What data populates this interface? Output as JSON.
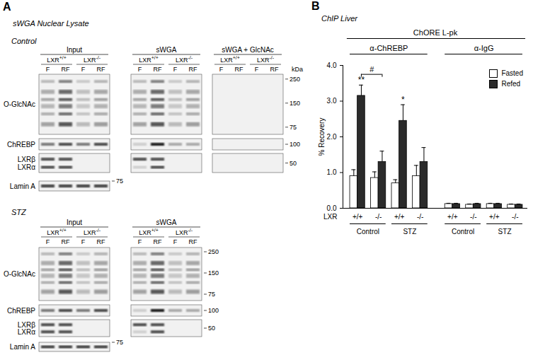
{
  "panel_a": {
    "label": "A",
    "title": "sWGA Nuclear Lysate",
    "blots": [
      {
        "condition": "Control",
        "unit": "kDa",
        "sections": [
          "Input",
          "sWGA",
          "sWGA + GlcNAc"
        ],
        "genotypes": [
          {
            "base": "LXR",
            "sup": "+/+"
          },
          {
            "base": "LXR",
            "sup": "-/-"
          }
        ],
        "lanes": [
          "F",
          "RF"
        ],
        "rows": [
          {
            "labels": [
              "O-GlcNAc"
            ],
            "markers": [
              250,
              150,
              75
            ]
          },
          {
            "labels": [
              "ChREBP"
            ],
            "markers": [
              100
            ]
          },
          {
            "labels": [
              "LXRβ",
              "LXRα"
            ],
            "markers": [
              50
            ]
          },
          {
            "labels": [
              "Lamin A"
            ],
            "markers": [
              75
            ]
          }
        ]
      },
      {
        "condition": "STZ",
        "sections": [
          "Input",
          "sWGA"
        ],
        "genotypes": [
          {
            "base": "LXR",
            "sup": "+/+"
          },
          {
            "base": "LXR",
            "sup": "-/-"
          }
        ],
        "lanes": [
          "F",
          "RF"
        ],
        "rows": [
          {
            "labels": [
              "O-GlcNAc"
            ],
            "markers": [
              250,
              150,
              75
            ]
          },
          {
            "labels": [
              "ChREBP"
            ],
            "markers": [
              100
            ]
          },
          {
            "labels": [
              "LXRβ",
              "LXRα"
            ],
            "markers": [
              50
            ]
          },
          {
            "labels": [
              "Lamin A"
            ],
            "markers": [
              75
            ]
          }
        ]
      }
    ]
  },
  "chart_data": {
    "type": "bar",
    "label": "B",
    "title": "ChIP Liver",
    "header": "ChORE L-pk",
    "category_label": "LXR",
    "categories": [
      "+/+",
      "-/-",
      "+/+",
      "-/-",
      "+/+",
      "-/-",
      "+/+",
      "-/-"
    ],
    "conditions": [
      {
        "name": "Control",
        "span": [
          0,
          1
        ]
      },
      {
        "name": "STZ",
        "span": [
          2,
          3
        ]
      },
      {
        "name": "Control",
        "span": [
          4,
          5
        ]
      },
      {
        "name": "STZ",
        "span": [
          6,
          7
        ]
      }
    ],
    "antibodies": [
      {
        "name": "α-ChREBP",
        "span": [
          0,
          3
        ]
      },
      {
        "name": "α-IgG",
        "span": [
          4,
          7
        ]
      }
    ],
    "series": [
      {
        "name": "Fasted",
        "color": "#ffffff",
        "values": [
          0.9,
          0.85,
          0.7,
          0.9,
          0.12,
          0.1,
          0.12,
          0.1
        ],
        "errors": [
          0.18,
          0.17,
          0.1,
          0.3,
          0.02,
          0.02,
          0.02,
          0.02
        ]
      },
      {
        "name": "Refed",
        "color": "#2b2b2b",
        "values": [
          3.15,
          1.3,
          2.45,
          1.3,
          0.12,
          0.12,
          0.12,
          0.1
        ],
        "errors": [
          0.3,
          0.3,
          0.45,
          0.4,
          0.02,
          0.02,
          0.02,
          0.02
        ]
      }
    ],
    "ylabel": "% Recovery",
    "ylim": [
      0,
      4
    ],
    "yticks": [
      0,
      1,
      2,
      3,
      4
    ],
    "legend": "top-right",
    "annotations": [
      {
        "text": "**",
        "category": 0,
        "series": "Refed"
      },
      {
        "text": "*",
        "category": 2,
        "series": "Refed"
      }
    ],
    "bracket": {
      "text": "#",
      "categories": [
        0,
        1
      ],
      "series": "Refed"
    }
  }
}
